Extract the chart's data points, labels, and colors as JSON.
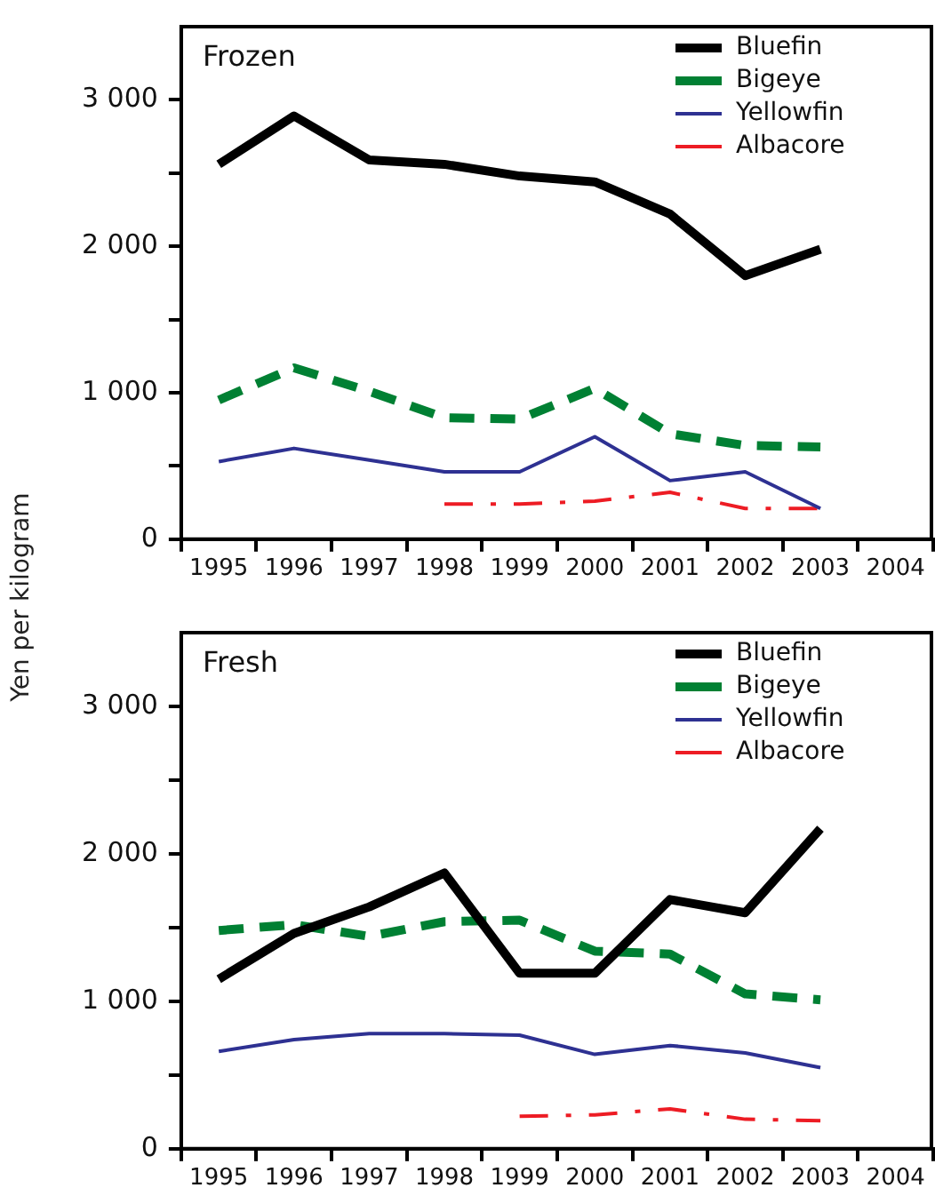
{
  "chart_data": [
    {
      "type": "line",
      "title": "Frozen",
      "ylabel": "Yen per kilogram",
      "categories": [
        "1995",
        "1996",
        "1997",
        "1998",
        "1999",
        "2000",
        "2001",
        "2002",
        "2003",
        "2004"
      ],
      "series": [
        {
          "name": "Bluefin",
          "color": "#000000",
          "line_style": "solid",
          "values": [
            2560,
            2890,
            2590,
            2560,
            2480,
            2440,
            2220,
            1800,
            1980,
            null
          ]
        },
        {
          "name": "Bigeye",
          "color": "#008033",
          "line_style": "dashed",
          "values": [
            950,
            1170,
            1010,
            830,
            820,
            1030,
            720,
            640,
            630,
            null
          ]
        },
        {
          "name": "Yellowfin",
          "color": "#2e3192",
          "line_style": "solid",
          "values": [
            530,
            620,
            540,
            460,
            460,
            700,
            400,
            460,
            210,
            null
          ]
        },
        {
          "name": "Albacore",
          "color": "#ed1c24",
          "line_style": "dashed",
          "values": [
            null,
            null,
            null,
            240,
            240,
            260,
            320,
            210,
            210,
            null
          ]
        }
      ],
      "ylim": [
        0,
        3500
      ],
      "yticks": [
        0,
        {
          "value": 500,
          "label": null
        },
        {
          "value": 1000,
          "label": "1 000"
        },
        {
          "value": 1500,
          "label": null
        },
        {
          "value": 2000,
          "label": "2 000"
        },
        {
          "value": 2500,
          "label": null
        },
        {
          "value": 3000,
          "label": "3 000"
        }
      ],
      "grid": false,
      "legend": "top right",
      "marker": "none"
    },
    {
      "type": "line",
      "title": "Fresh",
      "categories": [
        "1995",
        "1996",
        "1997",
        "1998",
        "1999",
        "2000",
        "2001",
        "2002",
        "2003",
        "2004"
      ],
      "series": [
        {
          "name": "Bluefin",
          "color": "#000000",
          "line_style": "solid",
          "values": [
            1150,
            1460,
            1640,
            1870,
            1190,
            1190,
            1690,
            1600,
            2170,
            null
          ]
        },
        {
          "name": "Bigeye",
          "color": "#008033",
          "line_style": "dashed",
          "values": [
            1480,
            1520,
            1440,
            1540,
            1550,
            1340,
            1320,
            1050,
            1010,
            null
          ]
        },
        {
          "name": "Yellowfin",
          "color": "#2e3192",
          "line_style": "solid",
          "values": [
            660,
            740,
            780,
            780,
            770,
            640,
            700,
            650,
            550,
            null
          ]
        },
        {
          "name": "Albacore",
          "color": "#ed1c24",
          "line_style": "dashed",
          "values": [
            null,
            null,
            null,
            null,
            220,
            230,
            270,
            200,
            190,
            null
          ]
        }
      ],
      "ylim": [
        0,
        3500
      ],
      "yticks": [
        0,
        {
          "value": 500,
          "label": null
        },
        {
          "value": 1000,
          "label": "1 000"
        },
        {
          "value": 1500,
          "label": null
        },
        {
          "value": 2000,
          "label": "2 000"
        },
        {
          "value": 2500,
          "label": null
        },
        {
          "value": 3000,
          "label": "3 000"
        }
      ],
      "grid": false,
      "legend": "top right",
      "marker": "none"
    }
  ]
}
